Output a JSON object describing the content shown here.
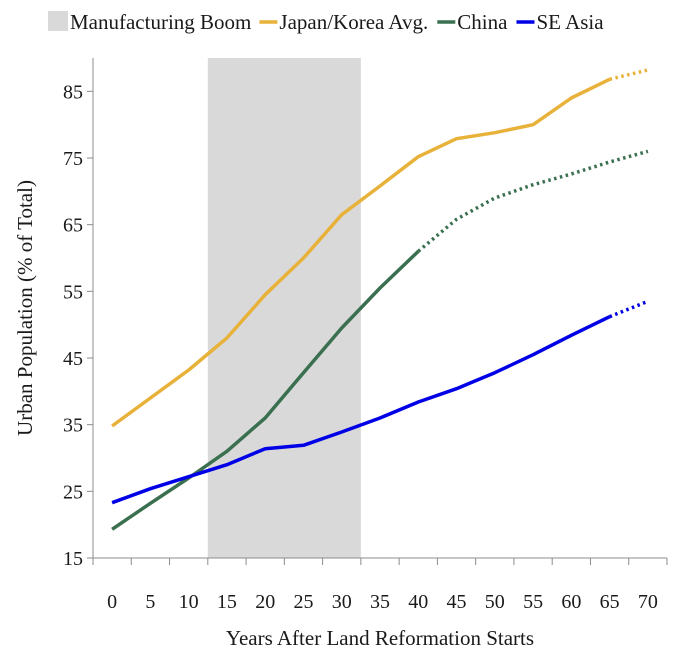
{
  "chart_data": {
    "type": "line",
    "title": "",
    "xlabel": "Years After Land Reformation Starts",
    "ylabel": "Urban Population (% of Total)",
    "xlim": [
      -2.5,
      72.5
    ],
    "ylim": [
      15,
      90
    ],
    "x_ticks": [
      0,
      5,
      10,
      15,
      20,
      25,
      30,
      35,
      40,
      45,
      50,
      55,
      60,
      65,
      70
    ],
    "y_ticks": [
      15,
      25,
      35,
      45,
      55,
      65,
      75,
      85
    ],
    "grid": false,
    "legend_position": "top",
    "shaded_region": {
      "name": "Manufacturing Boom",
      "x_start": 12.5,
      "x_end": 32.5,
      "color": "#d9d9d9"
    },
    "series": [
      {
        "name": "Japan/Korea Avg.",
        "color": "#e8b23a",
        "x": [
          0,
          5,
          10,
          15,
          20,
          25,
          30,
          35,
          40,
          45,
          50,
          55,
          60,
          65,
          70
        ],
        "values": [
          34.8,
          39,
          43.2,
          48,
          54.5,
          60,
          66.5,
          70.8,
          75.2,
          77.9,
          78.8,
          80,
          84,
          86.8,
          88.2
        ],
        "projected_from_index": 13
      },
      {
        "name": "China",
        "color": "#3a7050",
        "x": [
          0,
          5,
          10,
          15,
          20,
          25,
          30,
          35,
          40,
          45,
          50,
          55,
          60,
          65,
          70
        ],
        "values": [
          19.3,
          23.2,
          27,
          31,
          36,
          42.8,
          49.5,
          55.5,
          61,
          65.8,
          69,
          71,
          72.6,
          74.4,
          76
        ],
        "projected_from_index": 8
      },
      {
        "name": "SE Asia",
        "color": "#0000e6",
        "x": [
          0,
          5,
          10,
          15,
          20,
          25,
          30,
          35,
          40,
          45,
          50,
          55,
          60,
          65,
          70
        ],
        "values": [
          23.3,
          25.4,
          27.2,
          29,
          31.4,
          31.9,
          33.9,
          36,
          38.4,
          40.4,
          42.8,
          45.5,
          48.4,
          51.2,
          53.5
        ],
        "projected_from_index": 13
      }
    ]
  }
}
